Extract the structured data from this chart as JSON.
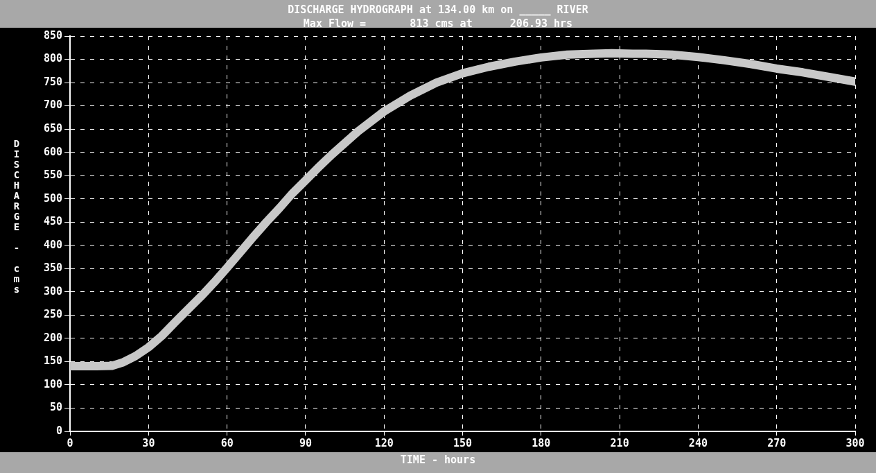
{
  "chart_data": {
    "type": "line",
    "title": "DISCHARGE HYDROGRAPH at 134.00 km on _____ RIVER",
    "subtitle": "Max Flow =       813 cms at      206.93 hrs",
    "xlabel": "TIME - hours",
    "ylabel": "DISCHARGE - cms",
    "series": [
      {
        "color": "#c8c8c8",
        "x": [
          0,
          10,
          16,
          20,
          25,
          30,
          35,
          40,
          45,
          50,
          55,
          60,
          65,
          70,
          75,
          80,
          85,
          90,
          95,
          100,
          110,
          120,
          130,
          140,
          150,
          160,
          170,
          180,
          190,
          200,
          207,
          215,
          220,
          230,
          240,
          250,
          260,
          270,
          280,
          290,
          300
        ],
        "values": [
          140,
          140,
          141,
          148,
          162,
          181,
          205,
          234,
          262,
          290,
          320,
          352,
          385,
          418,
          450,
          480,
          512,
          540,
          568,
          595,
          645,
          688,
          722,
          750,
          770,
          784,
          795,
          804,
          810,
          812,
          813,
          812,
          812,
          810,
          805,
          798,
          790,
          780,
          772,
          762,
          752
        ]
      }
    ],
    "xlim": [
      0,
      300
    ],
    "xticks": [
      0,
      30,
      60,
      90,
      120,
      150,
      180,
      210,
      240,
      270,
      300
    ],
    "ylim": [
      0,
      850
    ],
    "yticks": [
      0,
      50,
      100,
      150,
      200,
      250,
      300,
      350,
      400,
      450,
      500,
      550,
      600,
      650,
      700,
      750,
      800,
      850
    ],
    "grid": true,
    "line_style": "solid",
    "marker": "none",
    "legend": false
  }
}
